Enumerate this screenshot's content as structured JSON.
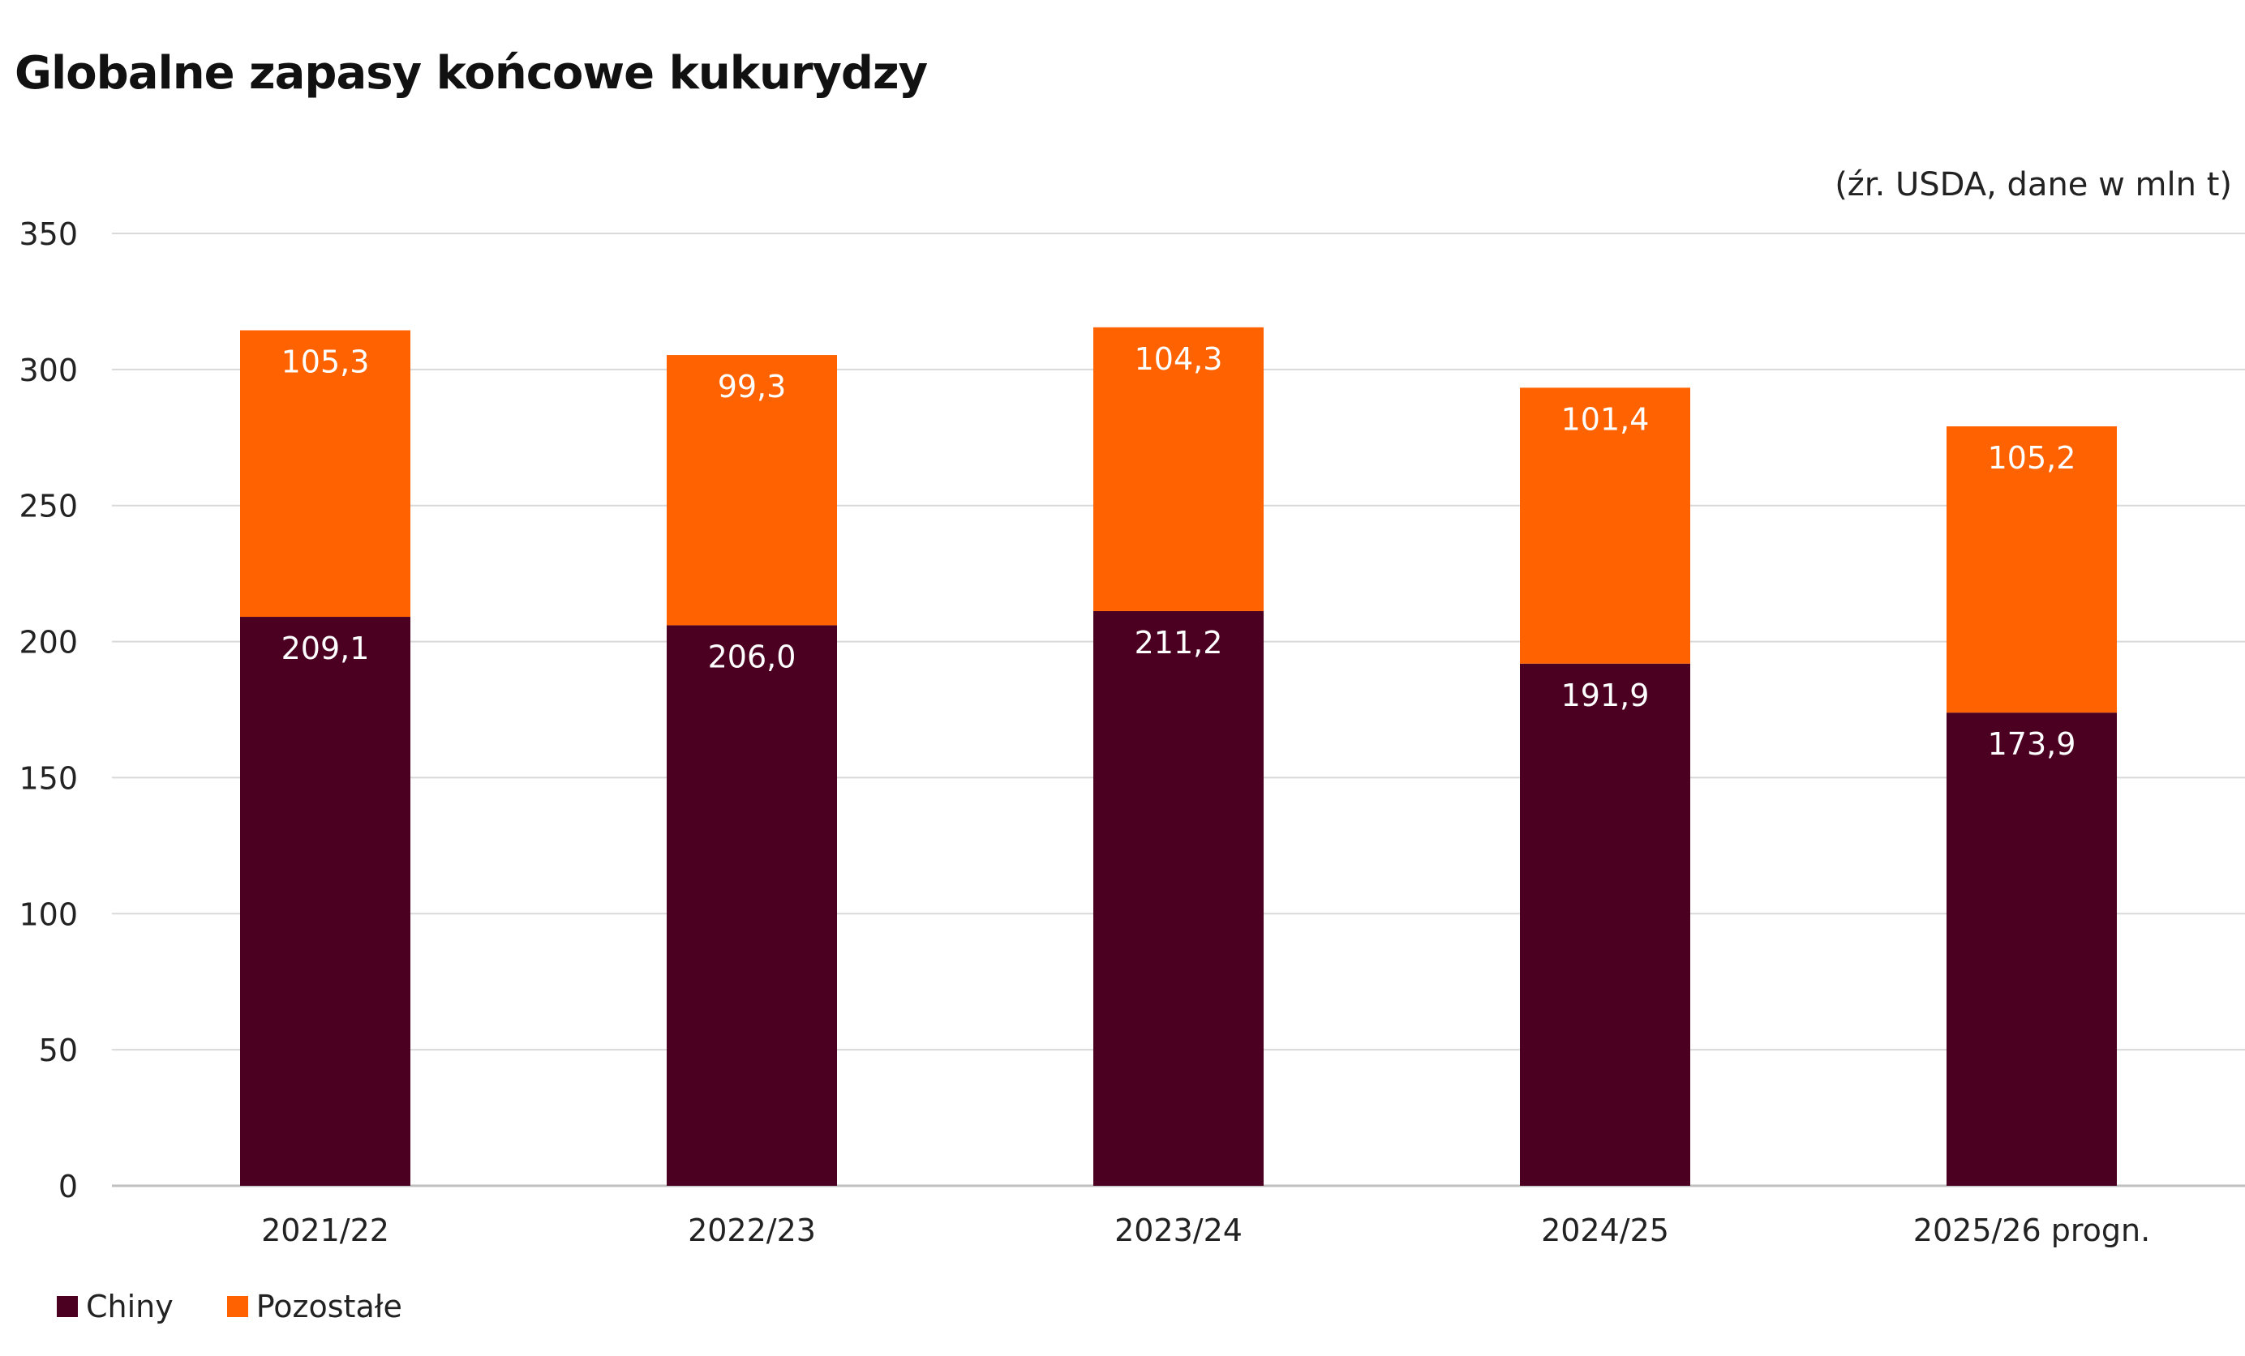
{
  "chart_data": {
    "type": "bar",
    "stacked": true,
    "title": "Globalne zapasy końcowe kukurydzy",
    "subtitle": "(źr. USDA, dane w mln t)",
    "xlabel": "",
    "ylabel": "",
    "categories": [
      "2021/22",
      "2022/23",
      "2023/24",
      "2024/25",
      "2025/26 progn."
    ],
    "series": [
      {
        "name": "Chiny",
        "color": "#4B0022",
        "values": [
          209.1,
          206.0,
          211.2,
          191.9,
          173.9
        ],
        "labels": [
          "209,1",
          "206,0",
          "211,2",
          "191,9",
          "173,9"
        ]
      },
      {
        "name": "Pozostałe",
        "color": "#FF6200",
        "values": [
          105.3,
          99.3,
          104.3,
          101.4,
          105.2
        ],
        "labels": [
          "105,3",
          "99,3",
          "104,3",
          "101,4",
          "105,2"
        ]
      }
    ],
    "ylim": [
      0,
      350
    ],
    "yticks": [
      0,
      50,
      100,
      150,
      200,
      250,
      300,
      350
    ],
    "grid": true,
    "legend_position": "bottom-left",
    "colors": {
      "gridline": "#D9D9D9",
      "axis_line": "#BFBFBF",
      "data_label": "#FFFFFF",
      "tick_label": "#222222"
    }
  }
}
